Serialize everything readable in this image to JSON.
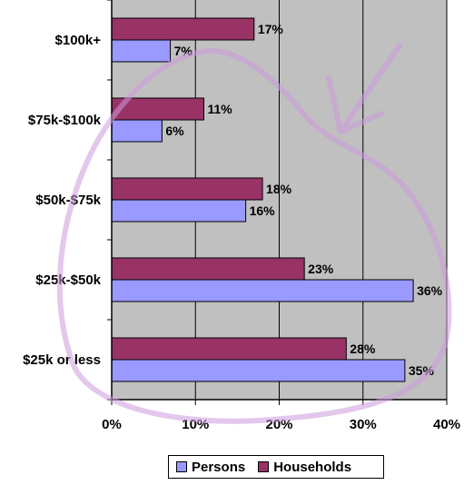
{
  "chart_data": {
    "type": "bar",
    "orientation": "horizontal",
    "categories": [
      "$100k+",
      "$75k-$100k",
      "$50k-$75k",
      "$25k-$50k",
      "$25k or less"
    ],
    "series": [
      {
        "name": "Households",
        "color": "#993366",
        "values": [
          17,
          11,
          18,
          23,
          28
        ],
        "labels": [
          "17%",
          "11%",
          "18%",
          "23%",
          "28%"
        ]
      },
      {
        "name": "Persons",
        "color": "#9999FF",
        "values": [
          7,
          6,
          16,
          36,
          35
        ],
        "labels": [
          "7%",
          "6%",
          "16%",
          "36%",
          "35%"
        ]
      }
    ],
    "x_ticks": [
      "0%",
      "10%",
      "20%",
      "30%",
      "40%"
    ],
    "xlim": [
      0,
      40
    ],
    "grid": true,
    "plot_background": "#C0C0C0",
    "legend_position": "bottom",
    "annotation": "hand-drawn purple loop and arrow"
  },
  "legend": {
    "persons_label": "Persons",
    "households_label": "Households"
  },
  "colors": {
    "persons": "#9999FF",
    "households": "#993366",
    "annotation": "#cc99dd"
  }
}
